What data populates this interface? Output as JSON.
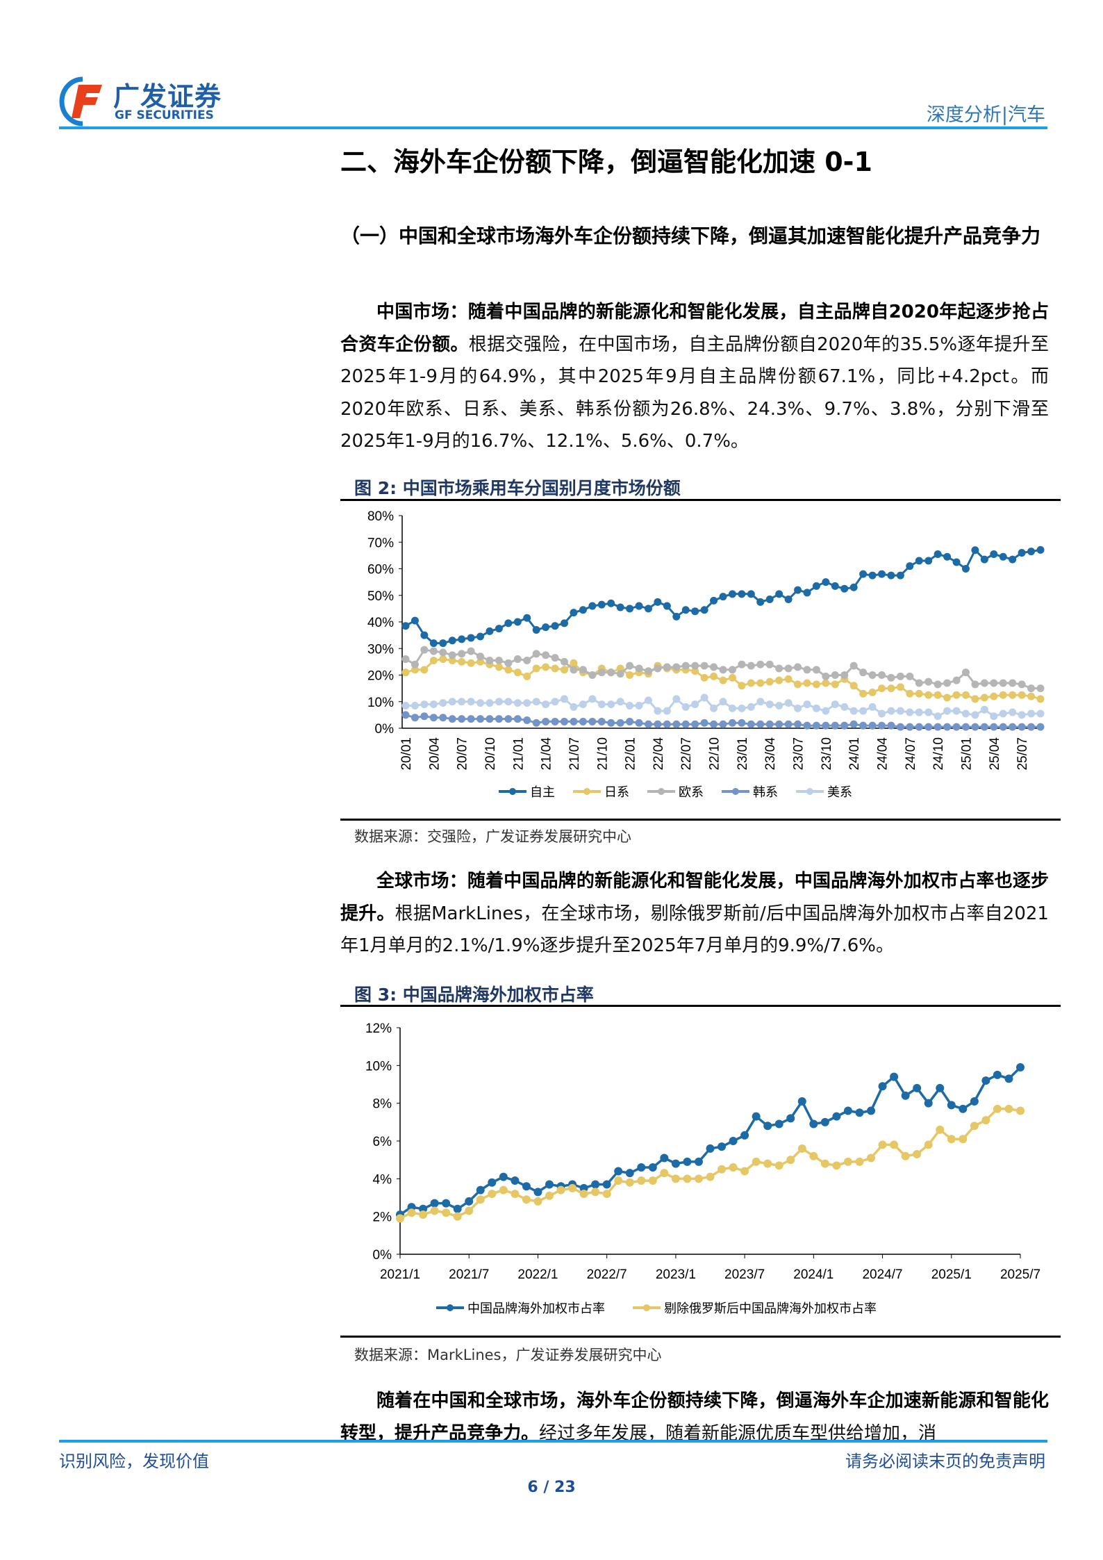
{
  "header": {
    "logo_cn": "广发证券",
    "logo_en": "GF SECURITIES",
    "report_type": "深度分析|汽车"
  },
  "section_title": "二、海外车企份额下降，倒逼智能化加速 0-1",
  "subsection_title": "（一）中国和全球市场海外车企份额持续下降，倒逼其加速智能化提升产品竞争力",
  "paragraphs": [
    {
      "bold": "中国市场：随着中国品牌的新能源化和智能化发展，自主品牌自2020年起逐步抢占合资车企份额。",
      "normal": "根据交强险，在中国市场，自主品牌份额自2020年的35.5%逐年提升至2025年1-9月的64.9%，其中2025年9月自主品牌份额67.1%，同比+4.2pct。而2020年欧系、日系、美系、韩系份额为26.8%、24.3%、9.7%、3.8%，分别下滑至2025年1-9月的16.7%、12.1%、5.6%、0.7%。"
    },
    {
      "bold": "全球市场：随着中国品牌的新能源化和智能化发展，中国品牌海外加权市占率也逐步提升。",
      "normal": "根据MarkLines，在全球市场，剔除俄罗斯前/后中国品牌海外加权市占率自2021年1月单月的2.1%/1.9%逐步提升至2025年7月单月的9.9%/7.6%。"
    },
    {
      "bold": "随着在中国和全球市场，海外车企份额持续下降，倒逼海外车企加速新能源和智能化转型，提升产品竞争力。",
      "normal": "经过多年发展，随着新能源优质车型供给增加，消"
    }
  ],
  "figures": [
    {
      "title": "图  2:  中国市场乘用车分国别月度市场份额",
      "source": "数据来源：交强险，广发证券发展研究中心"
    },
    {
      "title": "图  3:  中国品牌海外加权市占率",
      "source": "数据来源：MarkLines，广发证券发展研究中心"
    }
  ],
  "footer": {
    "left": "识别风险，发现价值",
    "right": "请务必阅读末页的免责声明",
    "page": "6 / 23"
  },
  "chart_data": [
    {
      "type": "line",
      "title": "",
      "ylim": [
        0,
        80
      ],
      "y_ticks": [
        "0%",
        "10%",
        "20%",
        "30%",
        "40%",
        "50%",
        "60%",
        "70%",
        "80%"
      ],
      "x_start": "20/01",
      "x_tick_labels": [
        "20/01",
        "20/04",
        "20/07",
        "20/10",
        "21/01",
        "21/04",
        "21/07",
        "21/10",
        "22/01",
        "22/04",
        "22/07",
        "22/10",
        "23/01",
        "23/04",
        "23/07",
        "23/10",
        "24/01",
        "24/04",
        "24/07",
        "24/10",
        "25/01",
        "25/04",
        "25/07"
      ],
      "legend_position": "bottom",
      "grid": false,
      "series": [
        {
          "name": "自主",
          "color": "#1c6aa6",
          "values": [
            38.5,
            40.5,
            35,
            32,
            32,
            33,
            33.5,
            34,
            34.5,
            36.5,
            37.5,
            39.5,
            40,
            41.5,
            37,
            38,
            38.5,
            39.5,
            43.5,
            44.5,
            46,
            46.5,
            47,
            45.5,
            45,
            46,
            45,
            47.5,
            46,
            42,
            44.5,
            44,
            44.5,
            48,
            49.5,
            50.5,
            50.5,
            50.5,
            47.5,
            48.5,
            50.5,
            48.5,
            52,
            51,
            53.5,
            55,
            53.5,
            52.5,
            53,
            58,
            57.5,
            58,
            57.5,
            57.5,
            61,
            63,
            63,
            65.5,
            64.5,
            62.5,
            60,
            67,
            63.5,
            65.5,
            64.5,
            63.5,
            66,
            66.5,
            67.1
          ]
        },
        {
          "name": "日系",
          "color": "#e6c765",
          "values": [
            21,
            22,
            22,
            25.5,
            26,
            25.5,
            25,
            24.5,
            25,
            24,
            23,
            22,
            21,
            19.5,
            22.5,
            23,
            22.5,
            22,
            24.5,
            21,
            20,
            22.5,
            21,
            22.5,
            20,
            21,
            20.5,
            23.5,
            22.5,
            22,
            22,
            21.5,
            19,
            19.5,
            18,
            19,
            16,
            17,
            17,
            17.5,
            18,
            18.5,
            16.5,
            17,
            16.5,
            17,
            16.5,
            18.5,
            16,
            13,
            13.5,
            15,
            15,
            15.5,
            13,
            13,
            12.5,
            12.5,
            11.5,
            12.5,
            12.5,
            11,
            11.5,
            12,
            12.5,
            12.5,
            12.5,
            12,
            11
          ]
        },
        {
          "name": "欧系",
          "color": "#b5b5b5",
          "values": [
            26,
            24,
            29.5,
            29,
            28.5,
            27.5,
            28,
            29,
            27,
            25.5,
            25.5,
            24.5,
            26,
            25.5,
            28,
            27.5,
            26.5,
            25,
            22,
            22,
            20,
            21,
            21,
            20.5,
            23.5,
            22.5,
            21.5,
            22.5,
            23,
            23,
            23.5,
            23.5,
            23.5,
            23,
            22,
            22,
            24,
            23.5,
            24,
            24,
            22.5,
            22.5,
            23,
            22,
            22,
            19.5,
            20,
            20,
            23.5,
            21,
            20,
            20,
            19,
            19.5,
            19.5,
            17,
            17.5,
            16.5,
            17,
            18,
            21,
            16.5,
            17,
            17,
            17,
            17,
            16.5,
            15,
            15
          ]
        },
        {
          "name": "韩系",
          "color": "#7294c8",
          "values": [
            5,
            4,
            4.5,
            4,
            4,
            3.5,
            3.5,
            3.5,
            3.5,
            3.5,
            3.5,
            3.5,
            3.5,
            3,
            2,
            2.5,
            2.5,
            2.5,
            2.5,
            2.5,
            2.5,
            2.5,
            2,
            2,
            2.5,
            2,
            1.5,
            1.5,
            1.5,
            1.5,
            1.5,
            1.5,
            2,
            1.5,
            1.5,
            2,
            2,
            1.5,
            1.5,
            1.5,
            1.5,
            1.5,
            1.5,
            1,
            1,
            1,
            1,
            1,
            1.5,
            1,
            1,
            1,
            1,
            0.5,
            0.5,
            0.5,
            0.5,
            0.5,
            0.5,
            0.5,
            0.5,
            0.5,
            0.5,
            0.5,
            0.5,
            0.5,
            0.5,
            0.5,
            0.5
          ]
        },
        {
          "name": "美系",
          "color": "#bcd0ea",
          "values": [
            8.5,
            8.5,
            9,
            9,
            9.5,
            10,
            10,
            10,
            9.5,
            9.5,
            10,
            10,
            9.5,
            9.5,
            10,
            9,
            10,
            11,
            8,
            9,
            11,
            9,
            9,
            10,
            8.5,
            8.5,
            10.5,
            6.5,
            6.5,
            11,
            8,
            9,
            11.5,
            7.5,
            10,
            7.5,
            7.5,
            8,
            10,
            9,
            8.5,
            9.5,
            7.5,
            9,
            7.5,
            6.5,
            9,
            8,
            6.5,
            6.5,
            8,
            5.5,
            6.5,
            6.5,
            6,
            6,
            6,
            4.5,
            6.5,
            6.5,
            5.5,
            5,
            7,
            4.5,
            5.5,
            6,
            5,
            5.5,
            5.5
          ]
        }
      ]
    },
    {
      "type": "line",
      "title": "",
      "ylim": [
        0,
        12
      ],
      "y_ticks": [
        "0%",
        "2%",
        "4%",
        "6%",
        "8%",
        "10%",
        "12%"
      ],
      "x_start": "2021/1",
      "x_tick_labels": [
        "2021/1",
        "2021/7",
        "2022/1",
        "2022/7",
        "2023/1",
        "2023/7",
        "2024/1",
        "2024/7",
        "2025/1",
        "2025/7"
      ],
      "legend_position": "bottom",
      "grid": false,
      "series": [
        {
          "name": "中国品牌海外加权市占率",
          "color": "#1c6aa6",
          "values": [
            2.1,
            2.5,
            2.4,
            2.7,
            2.7,
            2.4,
            2.8,
            3.4,
            3.8,
            4.1,
            3.9,
            3.6,
            3.3,
            3.7,
            3.6,
            3.7,
            3.5,
            3.7,
            3.7,
            4.4,
            4.3,
            4.6,
            4.6,
            5.1,
            4.8,
            4.9,
            4.9,
            5.6,
            5.7,
            6.0,
            6.3,
            7.3,
            6.8,
            6.9,
            7.2,
            8.1,
            6.9,
            7.0,
            7.3,
            7.6,
            7.5,
            7.6,
            8.9,
            9.4,
            8.4,
            8.8,
            8.0,
            8.8,
            7.9,
            7.7,
            8.1,
            9.2,
            9.5,
            9.3,
            9.9
          ]
        },
        {
          "name": "剔除俄罗斯后中国品牌海外加权市占率",
          "color": "#e6c765",
          "values": [
            1.9,
            2.2,
            2.1,
            2.3,
            2.2,
            2.0,
            2.3,
            2.9,
            3.2,
            3.4,
            3.2,
            2.9,
            2.8,
            3.1,
            3.4,
            3.5,
            3.2,
            3.3,
            3.2,
            3.9,
            3.8,
            3.9,
            3.9,
            4.3,
            4.0,
            4.0,
            4.0,
            4.1,
            4.5,
            4.6,
            4.4,
            4.9,
            4.8,
            4.7,
            5.0,
            5.6,
            5.2,
            4.8,
            4.7,
            4.9,
            4.9,
            5.1,
            5.8,
            5.8,
            5.2,
            5.3,
            5.8,
            6.6,
            6.1,
            6.1,
            6.8,
            7.1,
            7.7,
            7.7,
            7.6
          ]
        }
      ]
    }
  ]
}
